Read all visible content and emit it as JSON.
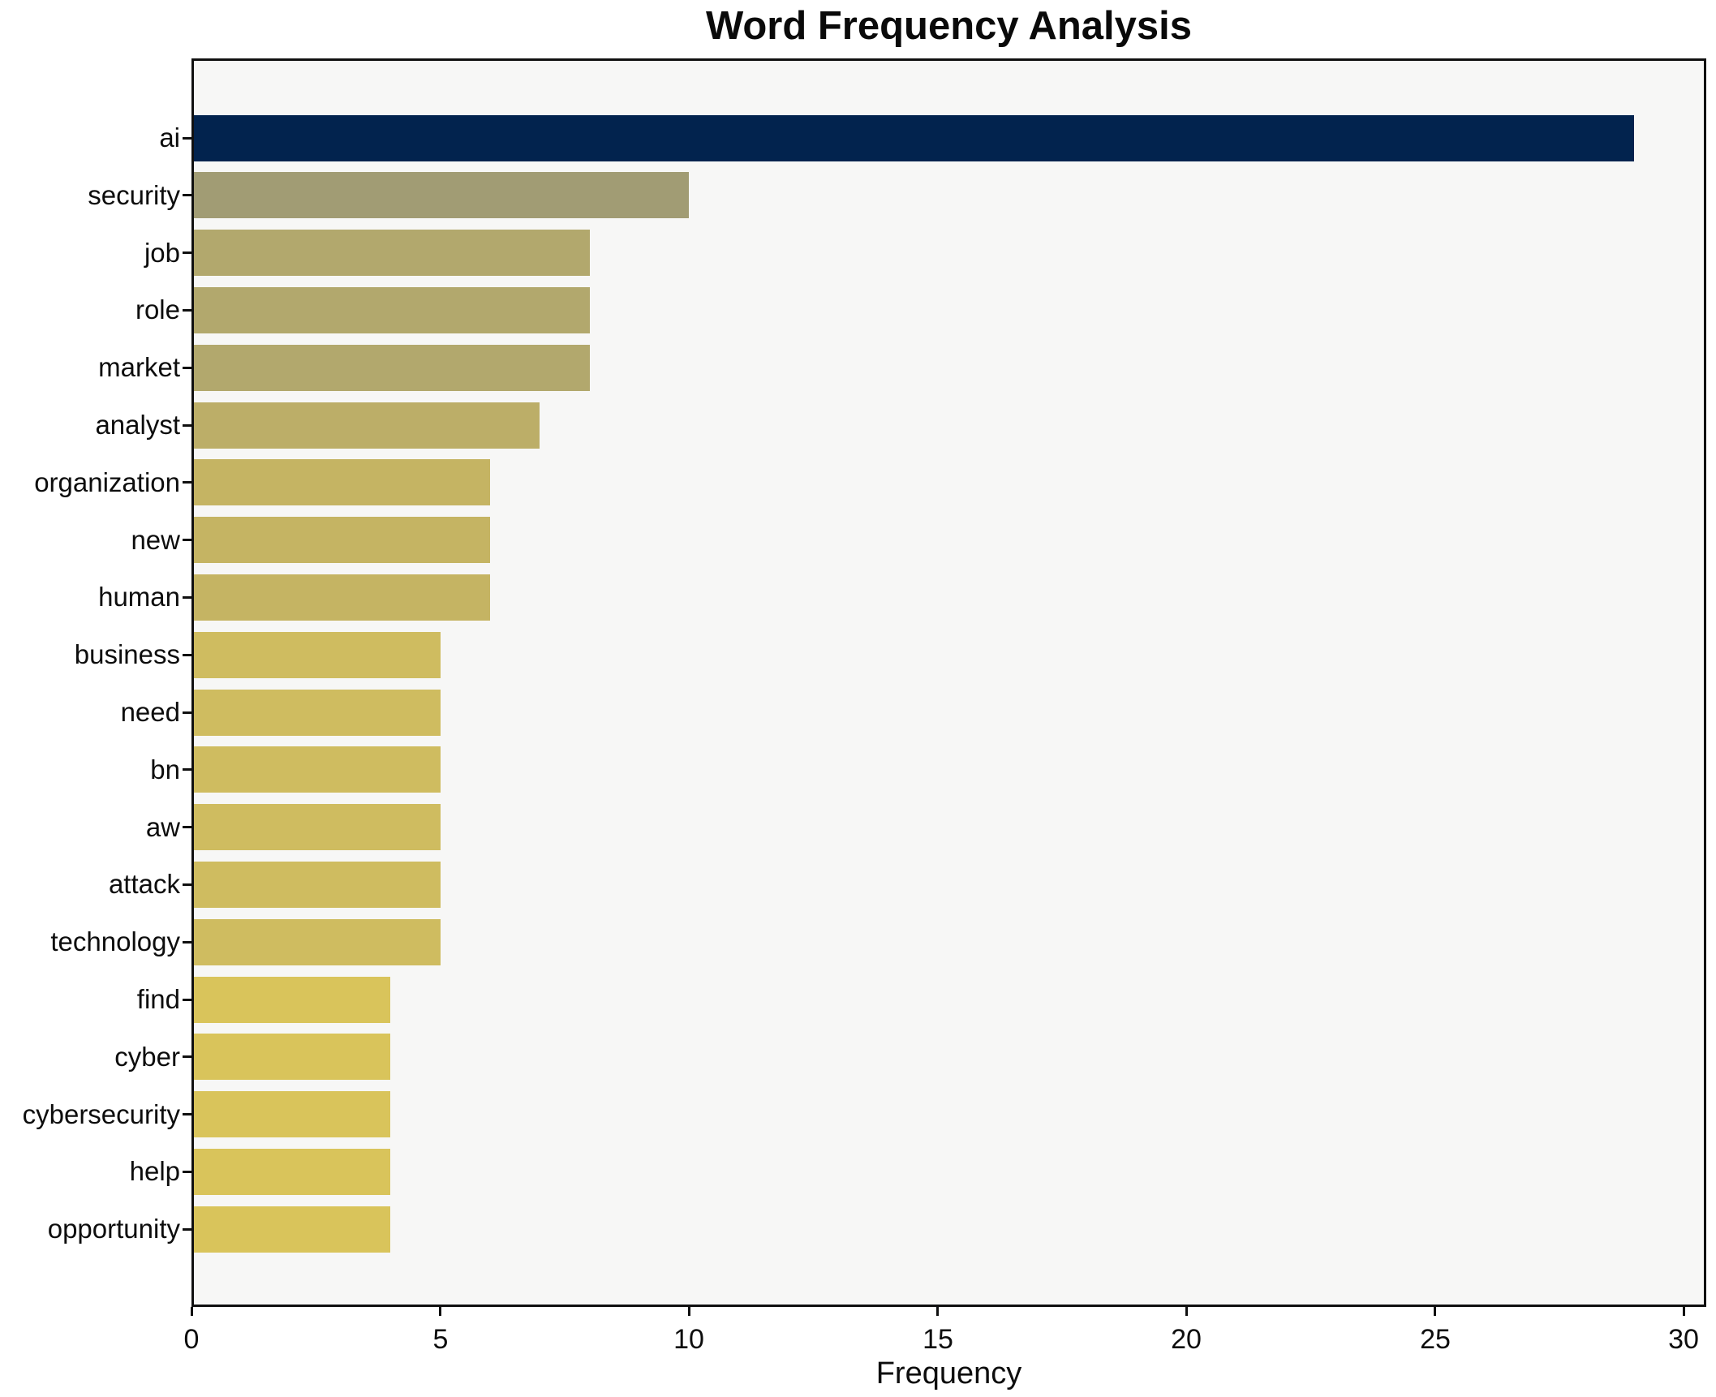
{
  "chart_data": {
    "type": "bar",
    "orientation": "horizontal",
    "title": "Word Frequency Analysis",
    "xlabel": "Frequency",
    "ylabel": "",
    "categories": [
      "ai",
      "security",
      "job",
      "role",
      "market",
      "analyst",
      "organization",
      "new",
      "human",
      "business",
      "need",
      "bn",
      "aw",
      "attack",
      "technology",
      "find",
      "cyber",
      "cybersecurity",
      "help",
      "opportunity"
    ],
    "values": [
      29,
      10,
      8,
      8,
      8,
      7,
      6,
      6,
      6,
      5,
      5,
      5,
      5,
      5,
      5,
      4,
      4,
      4,
      4,
      4
    ],
    "bar_colors": [
      "#02234e",
      "#a19c74",
      "#b2a86d",
      "#b2a86d",
      "#b2a86d",
      "#bcae68",
      "#c5b463",
      "#c5b463",
      "#c5b463",
      "#cfbc60",
      "#cfbc60",
      "#cfbc60",
      "#cfbc60",
      "#cfbc60",
      "#cfbc60",
      "#d9c45b",
      "#d9c45b",
      "#d9c45b",
      "#d9c45b",
      "#d9c45b"
    ],
    "xticks": [
      0,
      5,
      10,
      15,
      20,
      25,
      30
    ],
    "xlim": [
      0,
      30.45
    ],
    "grid": false,
    "legend": false,
    "plot_background": "#f7f7f6",
    "figure_background": "#ffffff",
    "spine_color": "#101010",
    "text_color": "#0d0d0d",
    "accent_color": "#02234e"
  }
}
